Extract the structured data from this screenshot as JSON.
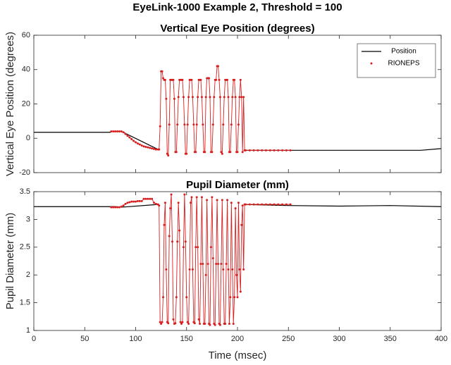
{
  "title": "EyeLink-1000 Example 2, Threshold = 100",
  "chart_data": [
    {
      "type": "line",
      "title": "Vertical Eye Position (degrees)",
      "y_label": "Vertical Eye Position (degrees)",
      "xlim": [
        0,
        400
      ],
      "xticks": [
        0,
        50,
        100,
        150,
        200,
        250,
        300,
        350,
        400
      ],
      "show_xtick_labels": false,
      "ylim": [
        -20,
        60
      ],
      "yticks": [
        -20,
        0,
        20,
        40,
        60
      ],
      "legend": "upper right",
      "series": [
        {
          "name": "Position",
          "color": "#000000",
          "marker": false,
          "x": [
            0,
            75,
            76,
            86,
            122,
            165,
            207,
            380,
            400
          ],
          "values": [
            3.5,
            3.5,
            4,
            4,
            -6.5,
            null,
            -7,
            -7,
            -6
          ]
        },
        {
          "name": "RIONEPS",
          "color": "#d62020",
          "marker": true,
          "x": [
            76,
            78,
            80,
            82,
            84,
            86,
            88,
            90,
            92,
            94,
            96,
            98,
            100,
            102,
            104,
            106,
            108,
            110,
            112,
            114,
            116,
            118,
            120,
            122,
            123,
            124,
            125,
            126,
            127,
            128,
            129,
            130,
            131,
            132,
            133,
            134,
            135,
            136,
            137,
            138,
            139,
            140,
            141,
            142,
            143,
            144,
            145,
            146,
            147,
            148,
            149,
            150,
            151,
            152,
            153,
            154,
            155,
            156,
            157,
            158,
            159,
            160,
            161,
            162,
            163,
            164,
            165,
            166,
            167,
            168,
            169,
            170,
            171,
            172,
            173,
            174,
            175,
            176,
            177,
            178,
            179,
            180,
            181,
            182,
            183,
            184,
            185,
            186,
            187,
            188,
            189,
            190,
            191,
            192,
            193,
            194,
            195,
            196,
            197,
            198,
            199,
            200,
            201,
            202,
            203,
            204,
            205,
            206,
            207,
            208,
            212,
            216,
            220,
            224,
            228,
            232,
            236,
            240,
            244,
            248,
            252
          ],
          "values": [
            4,
            4,
            4,
            4,
            4,
            4,
            3.5,
            2.5,
            1.5,
            0.5,
            -0.5,
            -1.5,
            -2.3,
            -3,
            -3.6,
            -4.2,
            -4.7,
            -5,
            -5.3,
            -5.6,
            -5.9,
            -6.2,
            -6.5,
            -6.5,
            -6.5,
            7,
            39,
            39,
            35,
            34,
            34,
            23,
            -9,
            -10,
            8,
            34,
            34,
            34,
            34,
            23,
            -8,
            -8,
            8,
            24,
            34,
            34,
            34,
            34,
            24,
            8,
            -9,
            -9,
            8,
            24,
            34,
            34,
            34,
            24,
            8,
            -8,
            -8,
            8,
            24,
            34,
            34,
            34,
            24,
            8,
            -8,
            -8,
            24,
            35,
            35,
            35,
            24,
            -8,
            -8,
            8,
            24,
            34,
            34,
            42,
            42,
            34,
            24,
            -8,
            -9,
            8,
            24,
            34,
            34,
            34,
            24,
            -8,
            -8,
            8,
            24,
            34,
            34,
            24,
            -8,
            -8,
            8,
            24,
            34,
            24,
            -8,
            24,
            -7,
            -7,
            -7,
            -7,
            -7,
            -7,
            -7,
            -7,
            -7,
            -7,
            -7,
            -7,
            -7
          ]
        }
      ]
    },
    {
      "type": "line",
      "title": "Pupil Diameter (mm)",
      "y_label": "Pupil Diameter (mm)",
      "x_label": "Time (msec)",
      "xlim": [
        0,
        400
      ],
      "xticks": [
        0,
        50,
        100,
        150,
        200,
        250,
        300,
        350,
        400
      ],
      "show_xtick_labels": true,
      "ylim": [
        1,
        3.5
      ],
      "yticks": [
        1,
        1.5,
        2,
        2.5,
        3,
        3.5
      ],
      "series": [
        {
          "color": "#000000",
          "marker": false,
          "x": [
            0,
            80,
            86,
            122,
            165,
            207,
            250,
            300,
            350,
            400
          ],
          "values": [
            3.23,
            3.23,
            3.22,
            3.27,
            null,
            3.27,
            3.25,
            3.24,
            3.25,
            3.23
          ]
        },
        {
          "color": "#d62020",
          "marker": true,
          "x": [
            76,
            78,
            80,
            82,
            84,
            86,
            88,
            90,
            92,
            94,
            96,
            98,
            100,
            102,
            104,
            106,
            108,
            110,
            112,
            114,
            116,
            118,
            120,
            122,
            123,
            124,
            125,
            126,
            127,
            128,
            129,
            130,
            131,
            132,
            133,
            134,
            135,
            136,
            137,
            138,
            139,
            140,
            141,
            142,
            143,
            144,
            145,
            146,
            147,
            148,
            149,
            150,
            151,
            152,
            153,
            154,
            155,
            156,
            157,
            158,
            159,
            160,
            161,
            162,
            163,
            164,
            165,
            166,
            167,
            168,
            169,
            170,
            171,
            172,
            173,
            174,
            175,
            176,
            177,
            178,
            179,
            180,
            181,
            182,
            183,
            184,
            185,
            186,
            187,
            188,
            189,
            190,
            191,
            192,
            193,
            194,
            195,
            196,
            197,
            198,
            199,
            200,
            201,
            202,
            203,
            204,
            205,
            206,
            207,
            208,
            212,
            216,
            220,
            224,
            228,
            232,
            236,
            240,
            244,
            248,
            252
          ],
          "values": [
            3.22,
            3.22,
            3.22,
            3.22,
            3.22,
            3.23,
            3.25,
            3.28,
            3.3,
            3.31,
            3.32,
            3.32,
            3.32,
            3.33,
            3.33,
            3.33,
            3.37,
            3.37,
            3.37,
            3.37,
            3.37,
            3.3,
            3.28,
            3.27,
            3.25,
            1.15,
            1.12,
            1.15,
            1.6,
            2.9,
            3.3,
            2.1,
            1.15,
            1.13,
            2.7,
            3.2,
            3.45,
            2.6,
            1.2,
            1.12,
            1.13,
            1.6,
            2.6,
            3.3,
            2.8,
            1.15,
            1.12,
            1.15,
            2.5,
            3.45,
            2.6,
            1.6,
            1.15,
            1.12,
            2.1,
            3.3,
            3.4,
            2.1,
            1.15,
            1.13,
            2.5,
            3.4,
            2.5,
            1.2,
            1.12,
            2.2,
            3.4,
            2.2,
            1.12,
            1.12,
            2,
            3.35,
            2.2,
            1.12,
            1.1,
            2.5,
            3.4,
            2.3,
            1.12,
            1.1,
            2.2,
            3.35,
            2.2,
            1.12,
            1.1,
            2.2,
            3.35,
            2.1,
            1.12,
            1.12,
            2.2,
            3.35,
            2.1,
            1.12,
            1.6,
            3.3,
            2.1,
            1.12,
            1.6,
            3.2,
            2,
            1.6,
            3.3,
            2.1,
            1.7,
            2.9,
            3.25,
            2.1,
            3.27,
            3.27,
            3.27,
            3.27,
            3.27,
            3.27,
            3.27,
            3.27,
            3.27,
            3.27,
            3.27,
            3.27,
            3.27
          ]
        }
      ]
    }
  ]
}
